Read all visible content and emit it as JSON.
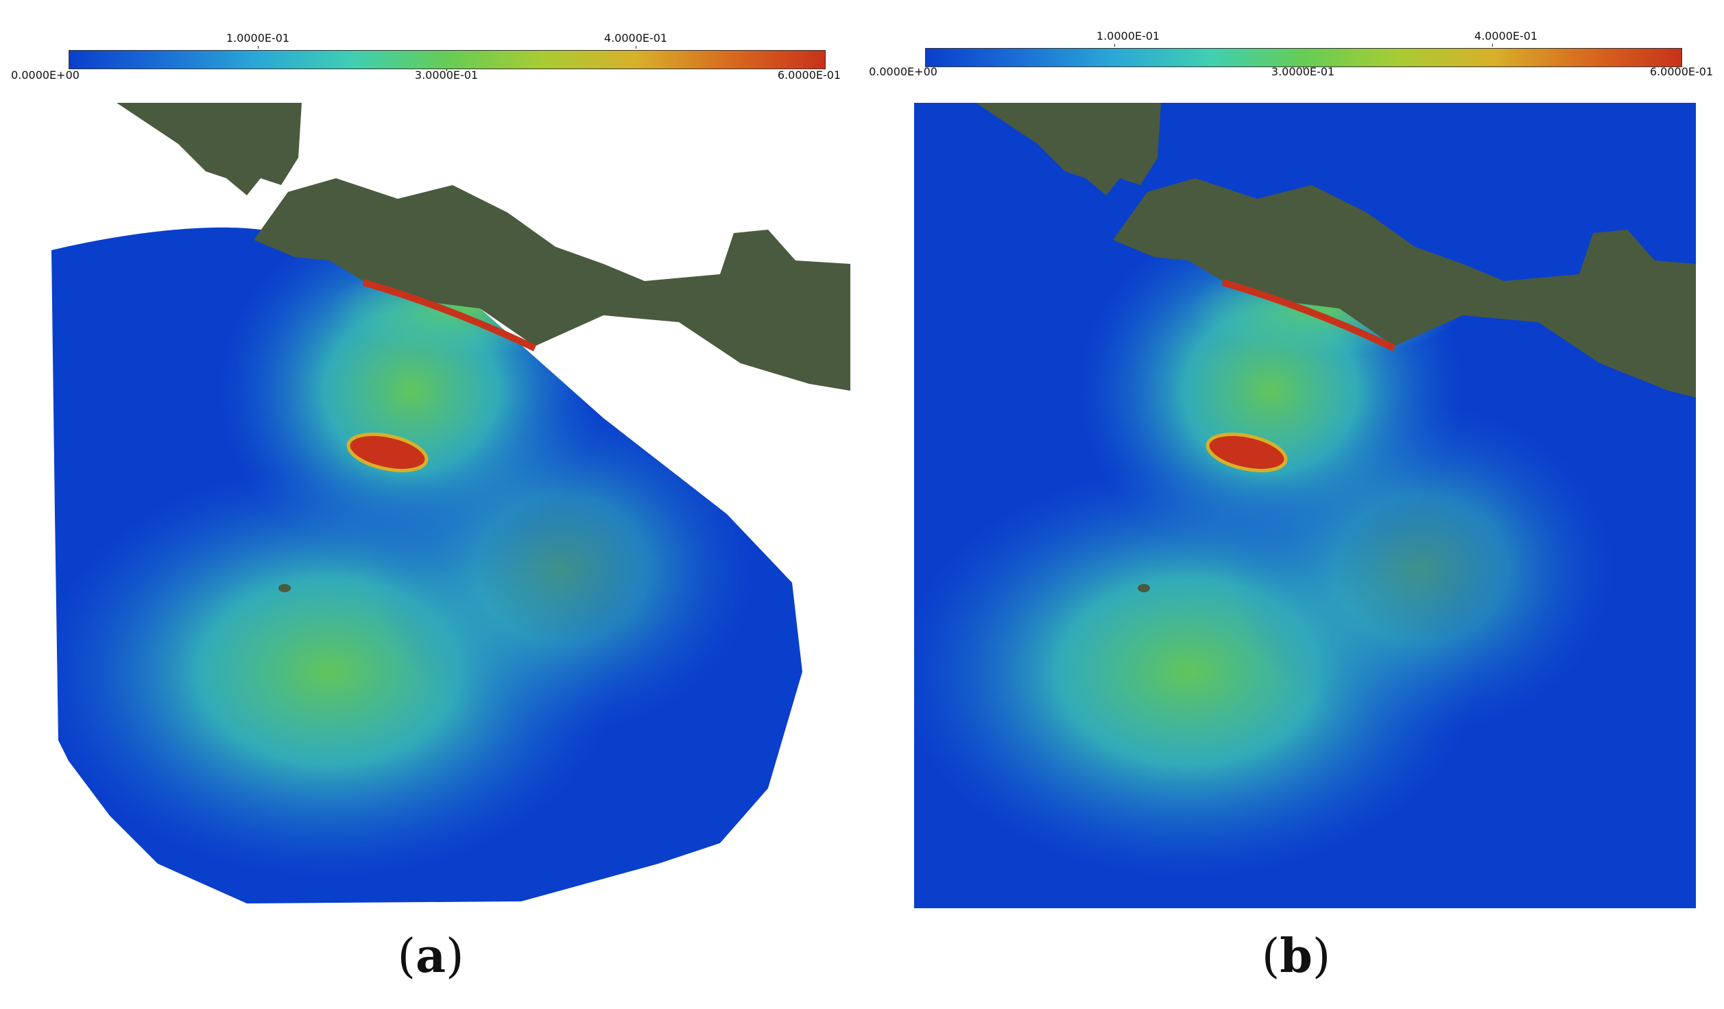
{
  "colorbar": {
    "upper_labels": [
      "1.0000E-01",
      "4.0000E-01"
    ],
    "lower_labels": [
      "0.0000E+00",
      "3.0000E-01",
      "6.0000E-01"
    ],
    "stops": [
      "#0a3fcc",
      "#1b6fd6",
      "#2aa8d6",
      "#3fcfb2",
      "#66cc55",
      "#a8cc33",
      "#d8b02a",
      "#d86a1e",
      "#c8321a"
    ]
  },
  "panels": [
    {
      "id": "a",
      "label": "a",
      "domain": "clipped-wave-extent"
    },
    {
      "id": "b",
      "label": "b",
      "domain": "full-square-domain"
    }
  ],
  "colors": {
    "ocean_blue": "#0a3fcc",
    "land": "#4a5a3e",
    "peak_red": "#c8321a",
    "mid_green": "#66cc55",
    "cyan": "#3fcfb2"
  }
}
